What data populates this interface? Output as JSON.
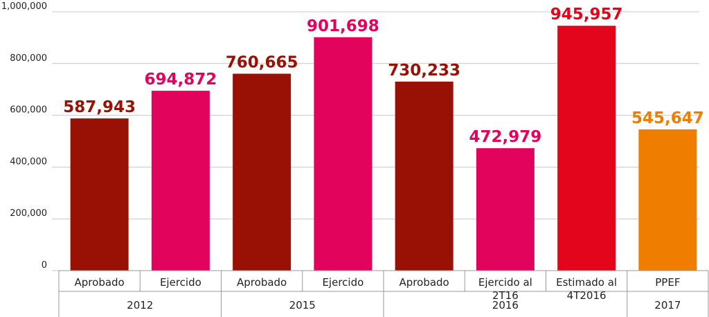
{
  "chart_data": {
    "type": "bar",
    "categories": [
      "Aprobado",
      "Ejercido",
      "Aprobado",
      "Ejercido",
      "Aprobado",
      "Ejercido al 2T16",
      "Estimado al 4T2016",
      "PPEF"
    ],
    "category_groups": [
      "2012",
      "2012",
      "2015",
      "2015",
      "2016",
      "2016",
      "2016",
      "2017"
    ],
    "values": [
      587943,
      694872,
      760665,
      901698,
      730233,
      472979,
      945957,
      545647
    ],
    "value_labels": [
      "587,943",
      "694,872",
      "760,665",
      "901,698",
      "730,233",
      "472,979",
      "945,957",
      "545,647"
    ],
    "colors": [
      "#991105",
      "#e2045c",
      "#991105",
      "#e2045c",
      "#991105",
      "#e2045c",
      "#e2051b",
      "#ef7d00"
    ],
    "ylim": [
      0,
      1000000
    ],
    "yticks": [
      0,
      {
        "value": 200000,
        "label": "200,000"
      },
      {
        "value": 400000,
        "label": "400,000"
      },
      {
        "value": 600000,
        "label": "600,000"
      },
      {
        "value": 800000,
        "label": "800,000"
      },
      {
        "value": 1000000,
        "label": "1,000,000"
      }
    ],
    "grid": true
  }
}
